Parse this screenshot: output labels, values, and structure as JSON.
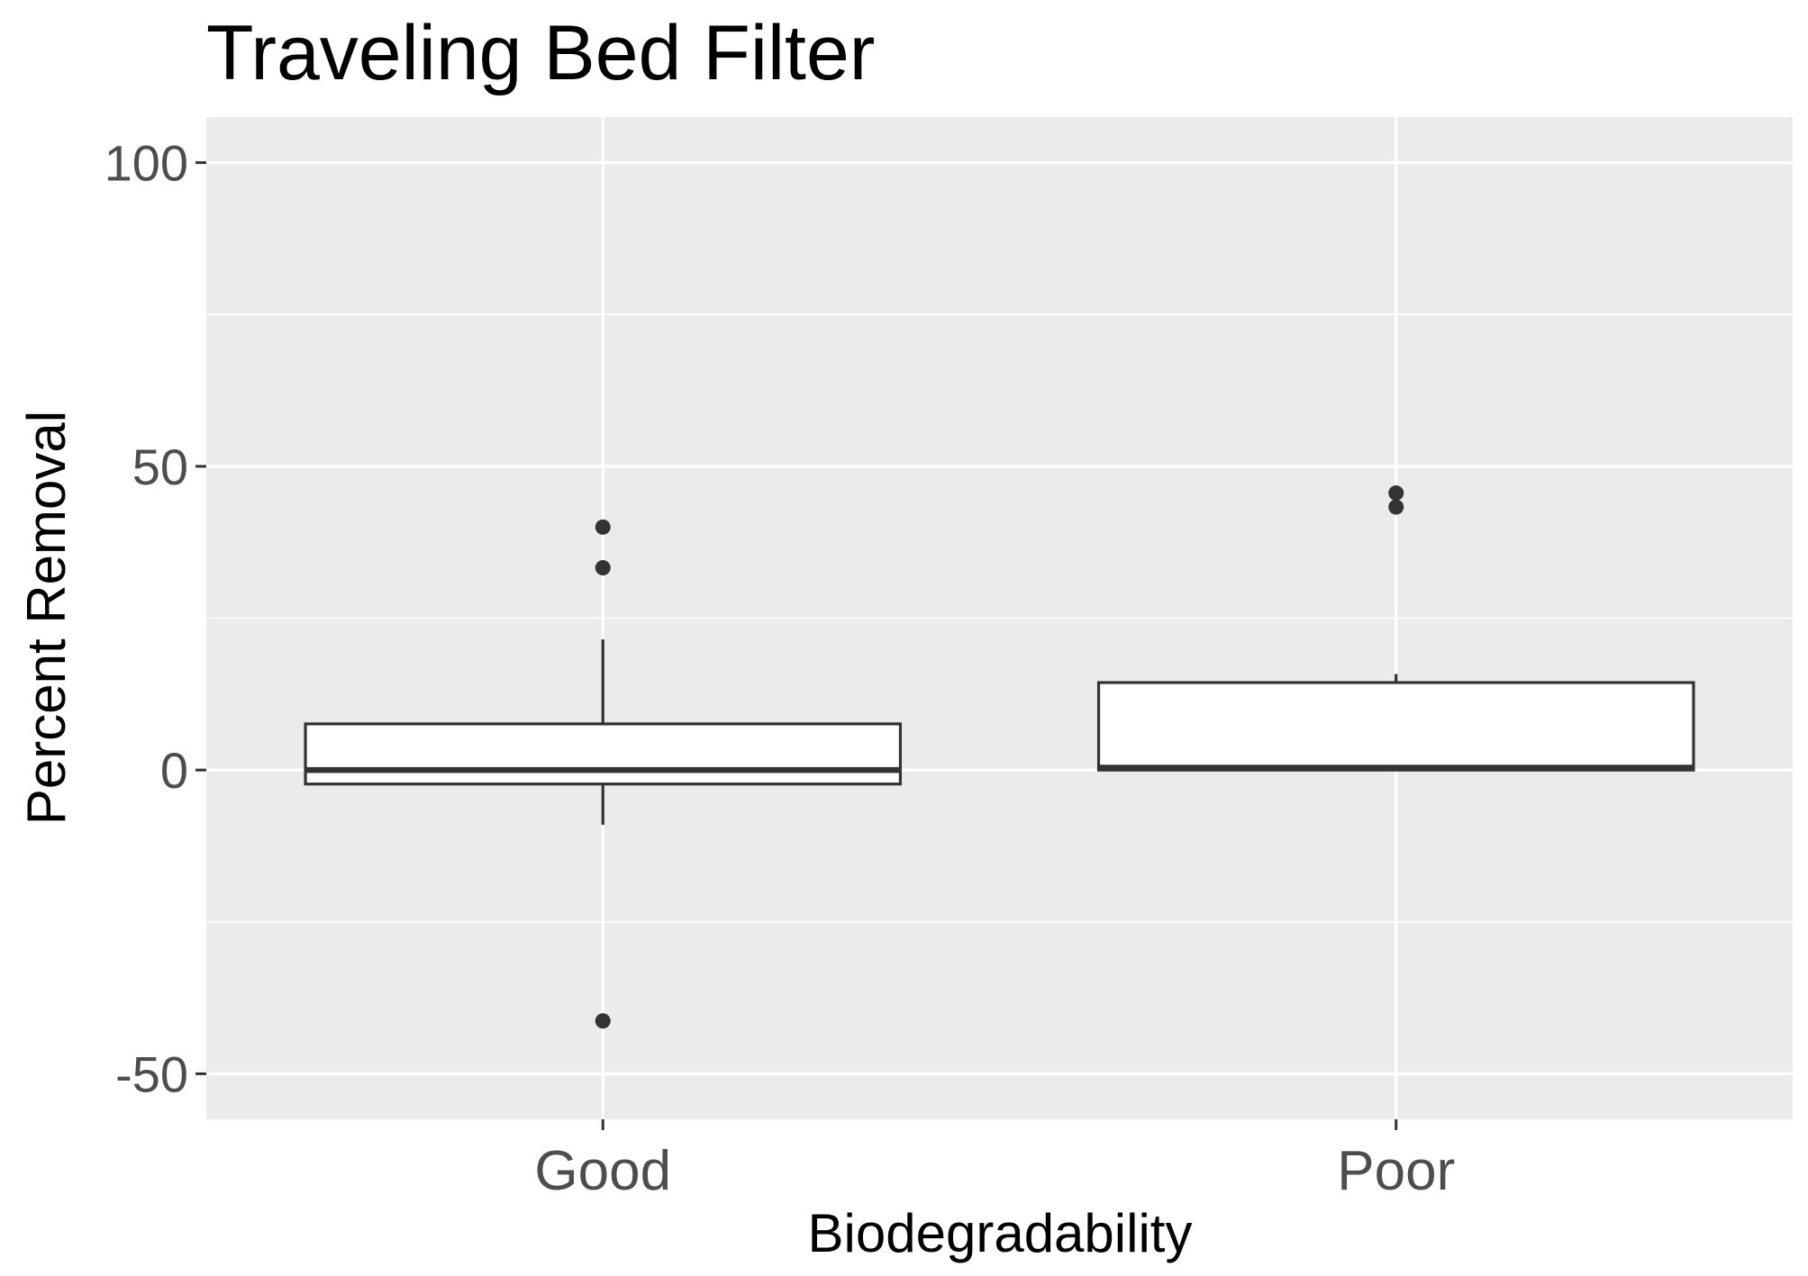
{
  "chart_data": {
    "type": "boxplot",
    "title": "Traveling Bed Filter",
    "xlabel": "Biodegradability",
    "ylabel": "Percent Removal",
    "ylim": [
      -57.5,
      107.5
    ],
    "yticks": [
      -50,
      0,
      50,
      100
    ],
    "y_minor_ticks": [
      -25,
      25,
      75
    ],
    "grid": true,
    "categories": [
      "Good",
      "Poor"
    ],
    "boxes": [
      {
        "category": "Good",
        "whisker_low": -9,
        "q1": -2.3,
        "median": 0,
        "q3": 7.6,
        "whisker_high": 21.5,
        "outliers": [
          40,
          33.3,
          -41.3
        ]
      },
      {
        "category": "Poor",
        "whisker_low": 0,
        "q1": 0,
        "median": 0.4,
        "q3": 14.4,
        "whisker_high": 15.8,
        "outliers": [
          45.6,
          43.3
        ]
      }
    ],
    "colors": {
      "panel_background": "#ebebeb",
      "grid": "#ffffff",
      "box_fill": "#ffffff",
      "box_line": "#333333",
      "outlier": "#333333",
      "tick_label": "#4d4d4d"
    }
  }
}
